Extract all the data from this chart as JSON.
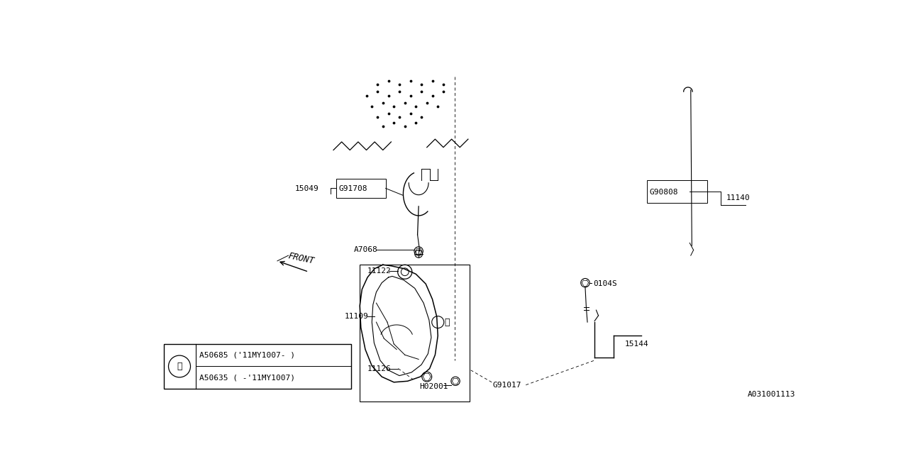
{
  "bg_color": "#ffffff",
  "line_color": "#000000",
  "diagram_id": "A031001113",
  "legend_row1": "A50635 ( -'11MY1007)",
  "legend_row2": "A50685 ('11MY1007- )"
}
